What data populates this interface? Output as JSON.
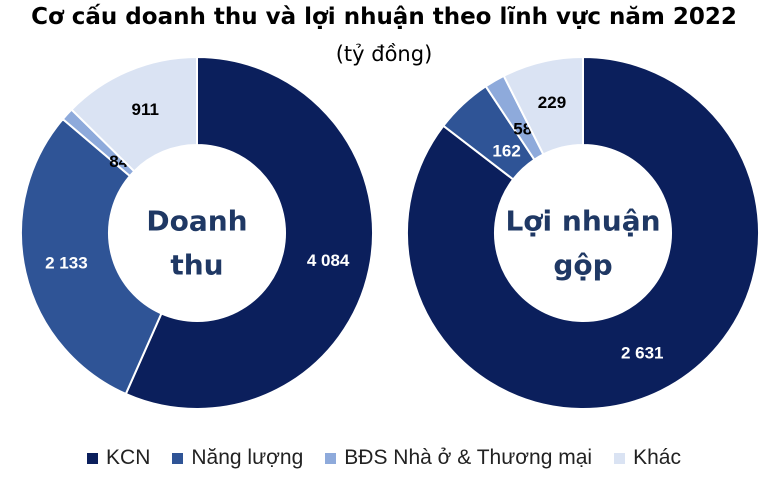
{
  "chart_data": [
    {
      "type": "pie",
      "title": "Cơ cấu doanh thu và lợi nhuận theo lĩnh vực năm 2022",
      "subtitle": "(tỷ đồng)",
      "center_label": [
        "Doanh",
        "thu"
      ],
      "categories": [
        "KCN",
        "Năng lượng",
        "BĐS Nhà ở & Thương mại",
        "Khác"
      ],
      "values": [
        4084,
        2133,
        84,
        911
      ],
      "value_labels": [
        "4 084",
        "2 133",
        "84",
        "911"
      ]
    },
    {
      "type": "pie",
      "center_label": [
        "Lợi nhuận",
        "gộp"
      ],
      "categories": [
        "KCN",
        "Năng lượng",
        "BĐS Nhà ở & Thương mại",
        "Khác"
      ],
      "values": [
        2631,
        162,
        58,
        229
      ],
      "value_labels": [
        "2 631",
        "162",
        "58",
        "229"
      ]
    }
  ],
  "legend": {
    "placement": "bottom",
    "items": [
      {
        "label": "KCN",
        "color": "#0b1f5c"
      },
      {
        "label": "Năng lượng",
        "color": "#2f5496"
      },
      {
        "label": "BĐS Nhà ở & Thương mại",
        "color": "#8eaadb"
      },
      {
        "label": "Khác",
        "color": "#dae3f3"
      }
    ]
  },
  "label_colors": [
    "#ffffff",
    "#ffffff",
    "#000000",
    "#000000"
  ],
  "center_text_color": "#1f3864"
}
